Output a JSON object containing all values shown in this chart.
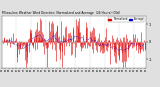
{
  "title": "Milwaukee Weather Wind Direction  Normalized and Average  (24 Hours) (Old)",
  "background_color": "#e0e0e0",
  "plot_bg_color": "#ffffff",
  "bar_color": "#dd0000",
  "avg_color": "#0000cc",
  "ylim": [
    -1.5,
    1.5
  ],
  "num_points": 288,
  "seed": 12345,
  "legend_red_label": "Normalized",
  "legend_blue_label": "Average",
  "legend_colors": [
    "#dd0000",
    "#0000cc"
  ],
  "figsize": [
    1.6,
    0.87
  ],
  "dpi": 100
}
